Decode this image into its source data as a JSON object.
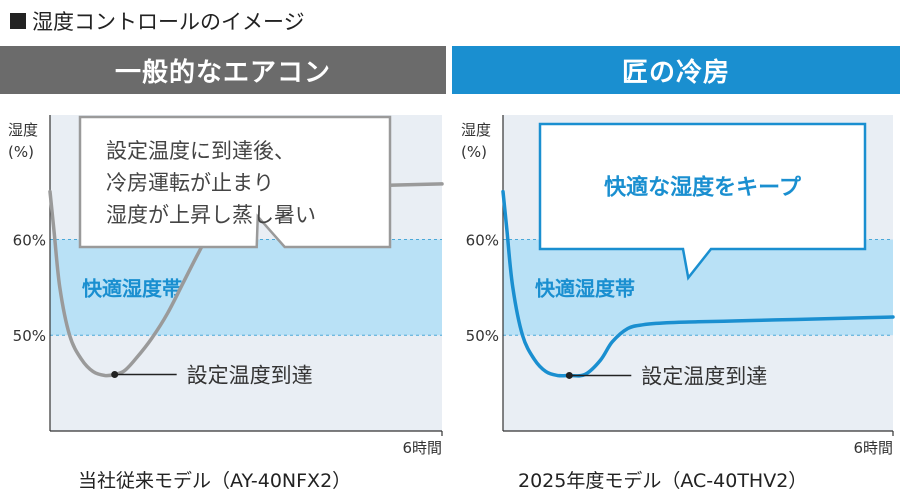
{
  "page": {
    "title": "湿度コントロールのイメージ"
  },
  "panels": [
    {
      "header": "一般的なエアコン",
      "caption": "当社従来モデル（AY-40NFX2）",
      "accent": "#6b6b6b",
      "curve_color": "#9a9a9a",
      "callout_border": "#9a9a9a",
      "callout_text_color": "#444444",
      "callout_lines": [
        "設定温度に到達後、",
        "冷房運転が止まり",
        "湿度が上昇し蒸し暑い"
      ],
      "callout_bold": false,
      "callout_pointer": {
        "x": 0.26,
        "y": 56.5
      },
      "band_label": "快適湿度帯",
      "marker_label": "設定温度到達"
    },
    {
      "header": "匠の冷房",
      "caption": "2025年度モデル（AC-40THV2）",
      "accent": "#1a8fd0",
      "curve_color": "#1a8fd0",
      "callout_border": "#1a8fd0",
      "callout_text_color": "#1a8fd0",
      "callout_lines": [
        "快適な湿度をキープ"
      ],
      "callout_bold": true,
      "callout_pointer": {
        "x": 0.24,
        "y": 56
      },
      "band_label": "快適湿度帯",
      "marker_label": "設定温度到達"
    }
  ],
  "band_color": "#b9e1f6",
  "chart_bg": "#e9eef4",
  "chart_data": [
    {
      "type": "line",
      "xlabel": "6時間",
      "ylabel": [
        "湿度",
        "(%)"
      ],
      "y_ticks": [
        "60%",
        "50%"
      ],
      "y_tick_values": [
        60,
        50
      ],
      "band": [
        50,
        60
      ],
      "xlim": [
        0,
        1
      ],
      "ylim": [
        40,
        73
      ],
      "series": [
        {
          "x": [
            0,
            0.01,
            0.025,
            0.05,
            0.08,
            0.11,
            0.14,
            0.165,
            0.19,
            0.22,
            0.26,
            0.3,
            0.34,
            0.38,
            0.42,
            0.46,
            0.5,
            0.55,
            0.6,
            0.7,
            0.8,
            0.9,
            1.0
          ],
          "y": [
            65,
            61,
            55,
            50,
            47.5,
            46.2,
            45.8,
            45.9,
            46.3,
            47.6,
            49.7,
            52.3,
            55.5,
            58.7,
            61.7,
            63.8,
            64.8,
            65.2,
            65.4,
            65.5,
            65.6,
            65.7,
            65.8
          ]
        }
      ],
      "marker": {
        "x": 0.165,
        "y": 45.9
      }
    },
    {
      "type": "line",
      "xlabel": "6時間",
      "ylabel": [
        "湿度",
        "(%)"
      ],
      "y_ticks": [
        "60%",
        "50%"
      ],
      "y_tick_values": [
        60,
        50
      ],
      "band": [
        50,
        60
      ],
      "xlim": [
        0,
        1
      ],
      "ylim": [
        40,
        73
      ],
      "series": [
        {
          "x": [
            0,
            0.01,
            0.025,
            0.05,
            0.08,
            0.11,
            0.14,
            0.17,
            0.21,
            0.25,
            0.28,
            0.32,
            0.36,
            0.42,
            0.5,
            0.6,
            0.7,
            0.8,
            0.9,
            1.0
          ],
          "y": [
            65,
            61,
            55,
            50,
            47.5,
            46.2,
            45.8,
            45.8,
            45.9,
            47.4,
            49.3,
            50.7,
            51.1,
            51.3,
            51.4,
            51.5,
            51.6,
            51.7,
            51.8,
            51.9
          ]
        }
      ],
      "marker": {
        "x": 0.17,
        "y": 45.8
      }
    }
  ]
}
